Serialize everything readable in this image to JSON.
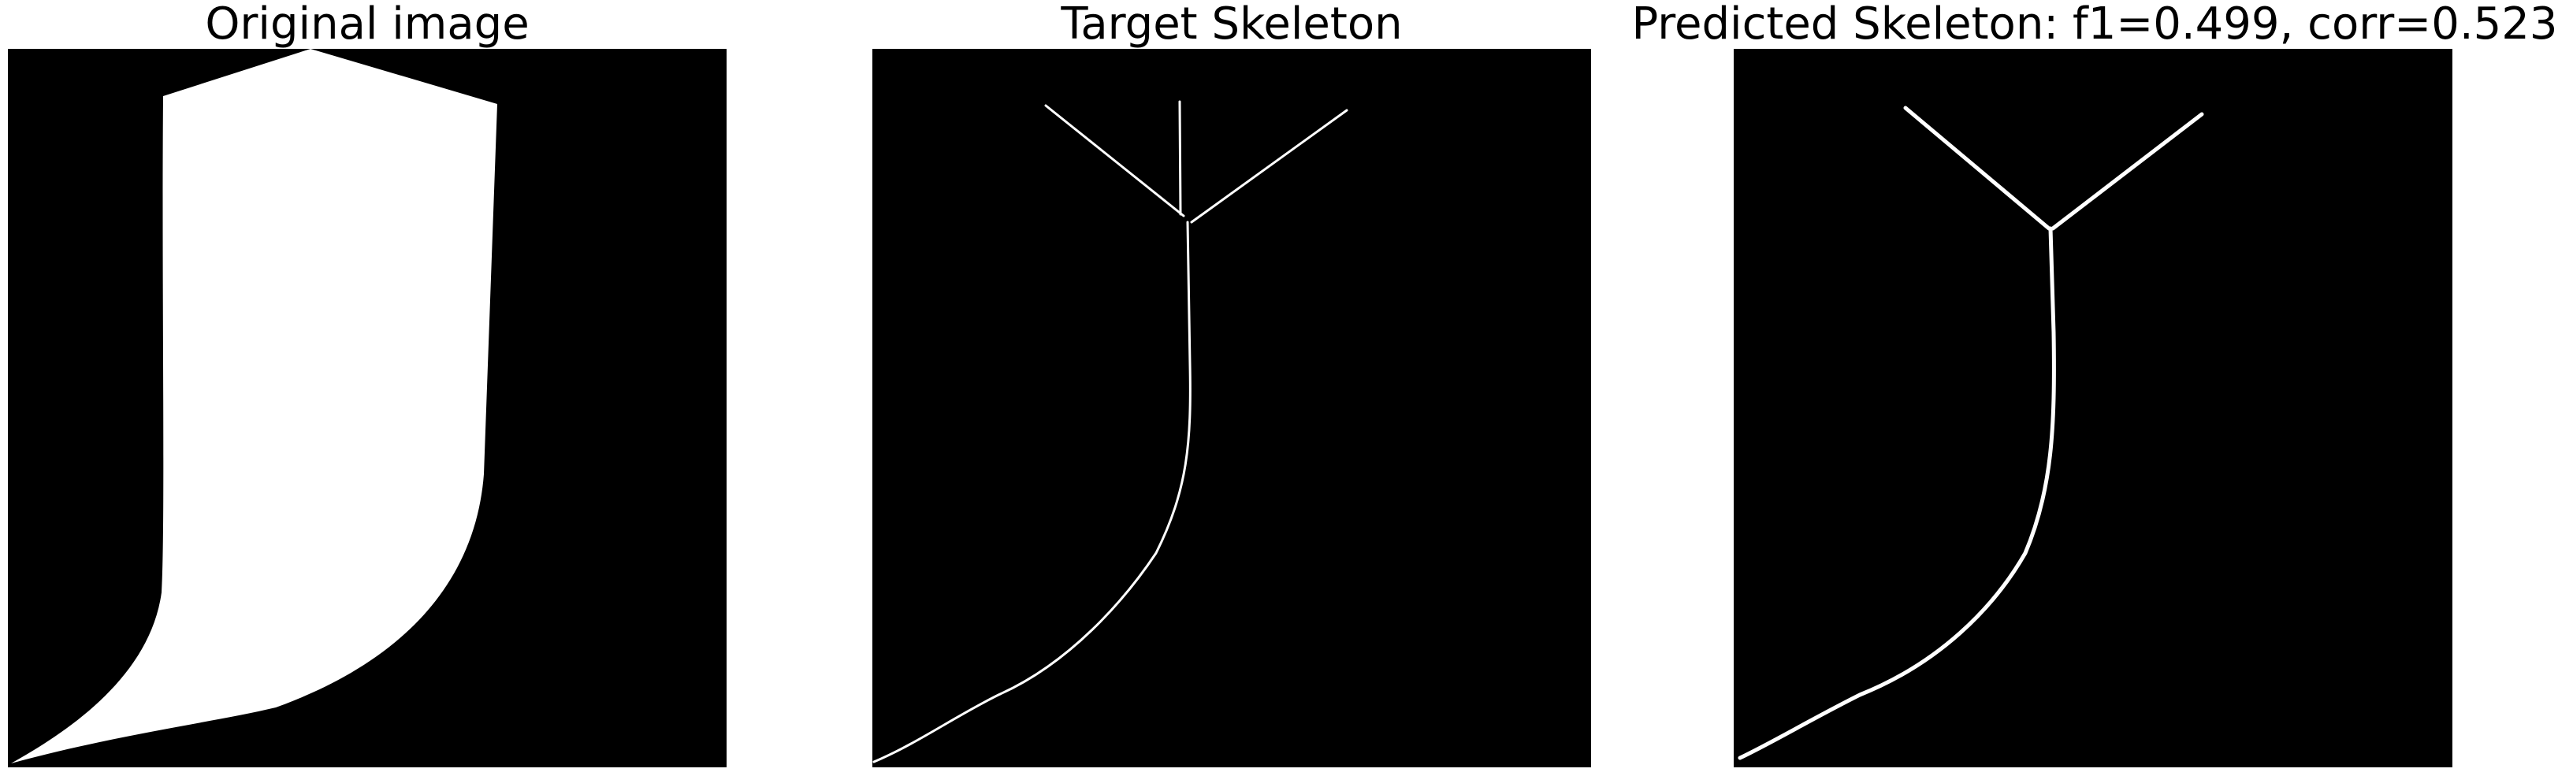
{
  "figure": {
    "panels": [
      {
        "title": "Original image"
      },
      {
        "title": "Target Skeleton"
      },
      {
        "title": "Predicted Skeleton: f1=0.499, corr=0.523"
      }
    ]
  },
  "colors": {
    "background": "#000000",
    "foreground": "#ffffff",
    "page": "#ffffff",
    "text": "#000000"
  }
}
